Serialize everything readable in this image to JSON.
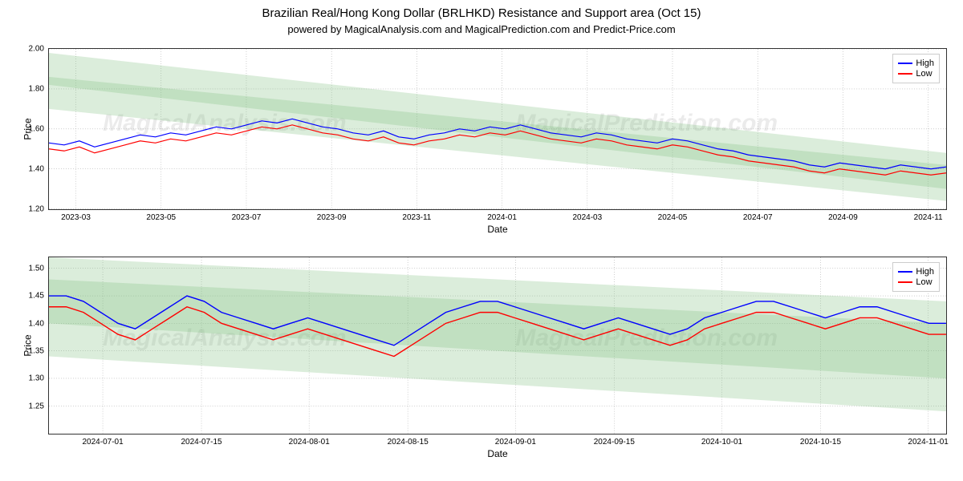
{
  "title": "Brazilian Real/Hong Kong Dollar (BRLHKD) Resistance and Support area (Oct 15)",
  "subtitle": "powered by MagicalAnalysis.com and MagicalPrediction.com and Predict-Price.com",
  "watermarks": {
    "left": "MagicalAnalysis.com",
    "right": "MagicalPrediction.com"
  },
  "legend": {
    "high": "High",
    "low": "Low",
    "high_color": "#0000ff",
    "low_color": "#ff0000"
  },
  "top_chart": {
    "type": "line",
    "xlabel": "Date",
    "ylabel": "Price",
    "ylim": [
      1.2,
      2.0
    ],
    "yticks": [
      1.2,
      1.4,
      1.6,
      1.8,
      2.0
    ],
    "xticks": [
      "2023-03",
      "2023-05",
      "2023-07",
      "2023-09",
      "2023-11",
      "2024-01",
      "2024-03",
      "2024-05",
      "2024-07",
      "2024-09",
      "2024-11"
    ],
    "xtick_pos": [
      0.03,
      0.125,
      0.22,
      0.315,
      0.41,
      0.505,
      0.6,
      0.695,
      0.79,
      0.885,
      0.98
    ],
    "band_color": "#7fbf7f",
    "band1": {
      "top_start": 1.98,
      "top_end": 1.48,
      "bot_start": 1.82,
      "bot_end": 1.3
    },
    "band2": {
      "top_start": 1.86,
      "top_end": 1.42,
      "bot_start": 1.7,
      "bot_end": 1.24
    },
    "high_color": "#0000ff",
    "low_color": "#ff0000",
    "high": [
      1.53,
      1.52,
      1.54,
      1.51,
      1.53,
      1.55,
      1.57,
      1.56,
      1.58,
      1.57,
      1.59,
      1.61,
      1.6,
      1.62,
      1.64,
      1.63,
      1.65,
      1.63,
      1.61,
      1.6,
      1.58,
      1.57,
      1.59,
      1.56,
      1.55,
      1.57,
      1.58,
      1.6,
      1.59,
      1.61,
      1.6,
      1.62,
      1.6,
      1.58,
      1.57,
      1.56,
      1.58,
      1.57,
      1.55,
      1.54,
      1.53,
      1.55,
      1.54,
      1.52,
      1.5,
      1.49,
      1.47,
      1.46,
      1.45,
      1.44,
      1.42,
      1.41,
      1.43,
      1.42,
      1.41,
      1.4,
      1.42,
      1.41,
      1.4,
      1.41
    ],
    "low": [
      1.5,
      1.49,
      1.51,
      1.48,
      1.5,
      1.52,
      1.54,
      1.53,
      1.55,
      1.54,
      1.56,
      1.58,
      1.57,
      1.59,
      1.61,
      1.6,
      1.62,
      1.6,
      1.58,
      1.57,
      1.55,
      1.54,
      1.56,
      1.53,
      1.52,
      1.54,
      1.55,
      1.57,
      1.56,
      1.58,
      1.57,
      1.59,
      1.57,
      1.55,
      1.54,
      1.53,
      1.55,
      1.54,
      1.52,
      1.51,
      1.5,
      1.52,
      1.51,
      1.49,
      1.47,
      1.46,
      1.44,
      1.43,
      1.42,
      1.41,
      1.39,
      1.38,
      1.4,
      1.39,
      1.38,
      1.37,
      1.39,
      1.38,
      1.37,
      1.38
    ],
    "grid_color": "#b0b0b0",
    "background_color": "#ffffff"
  },
  "bottom_chart": {
    "type": "line",
    "xlabel": "Date",
    "ylabel": "Price",
    "ylim": [
      1.2,
      1.52
    ],
    "yticks": [
      1.25,
      1.3,
      1.35,
      1.4,
      1.45,
      1.5
    ],
    "xticks": [
      "2024-07-01",
      "2024-07-15",
      "2024-08-01",
      "2024-08-15",
      "2024-09-01",
      "2024-09-15",
      "2024-10-01",
      "2024-10-15",
      "2024-11-01"
    ],
    "xtick_pos": [
      0.06,
      0.17,
      0.29,
      0.4,
      0.52,
      0.63,
      0.75,
      0.86,
      0.98
    ],
    "band_color": "#7fbf7f",
    "band1": {
      "top_start": 1.52,
      "top_end": 1.44,
      "bot_start": 1.4,
      "bot_end": 1.3
    },
    "band2": {
      "top_start": 1.48,
      "top_end": 1.4,
      "bot_start": 1.34,
      "bot_end": 1.24
    },
    "high_color": "#0000ff",
    "low_color": "#ff0000",
    "high": [
      1.45,
      1.45,
      1.44,
      1.42,
      1.4,
      1.39,
      1.41,
      1.43,
      1.45,
      1.44,
      1.42,
      1.41,
      1.4,
      1.39,
      1.4,
      1.41,
      1.4,
      1.39,
      1.38,
      1.37,
      1.36,
      1.38,
      1.4,
      1.42,
      1.43,
      1.44,
      1.44,
      1.43,
      1.42,
      1.41,
      1.4,
      1.39,
      1.4,
      1.41,
      1.4,
      1.39,
      1.38,
      1.39,
      1.41,
      1.42,
      1.43,
      1.44,
      1.44,
      1.43,
      1.42,
      1.41,
      1.42,
      1.43,
      1.43,
      1.42,
      1.41,
      1.4,
      1.4
    ],
    "low": [
      1.43,
      1.43,
      1.42,
      1.4,
      1.38,
      1.37,
      1.39,
      1.41,
      1.43,
      1.42,
      1.4,
      1.39,
      1.38,
      1.37,
      1.38,
      1.39,
      1.38,
      1.37,
      1.36,
      1.35,
      1.34,
      1.36,
      1.38,
      1.4,
      1.41,
      1.42,
      1.42,
      1.41,
      1.4,
      1.39,
      1.38,
      1.37,
      1.38,
      1.39,
      1.38,
      1.37,
      1.36,
      1.37,
      1.39,
      1.4,
      1.41,
      1.42,
      1.42,
      1.41,
      1.4,
      1.39,
      1.4,
      1.41,
      1.41,
      1.4,
      1.39,
      1.38,
      1.38
    ],
    "grid_color": "#b0b0b0",
    "background_color": "#ffffff"
  }
}
